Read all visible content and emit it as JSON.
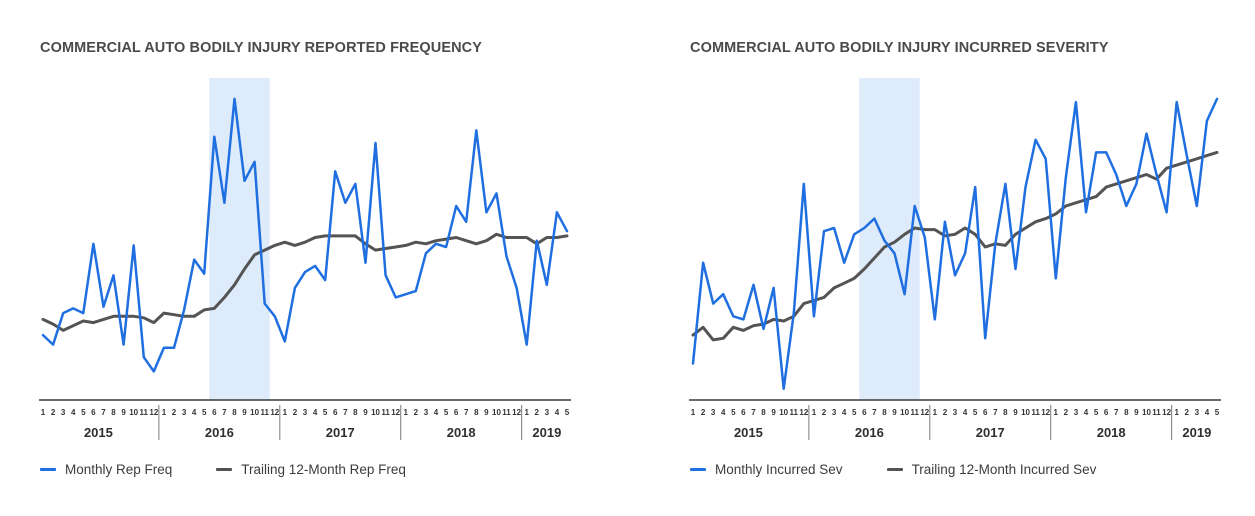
{
  "colors": {
    "monthly": "#1f6fe0",
    "trailing": "#545454",
    "highlight": "#deebfb",
    "axis": "#3a3a3a"
  },
  "chart_data": [
    {
      "type": "line",
      "title": "COMMERCIAL AUTO BODILY INJURY REPORTED FREQUENCY",
      "x_month_labels": [
        "1",
        "2",
        "3",
        "4",
        "5",
        "6",
        "7",
        "8",
        "9",
        "10",
        "11",
        "12",
        "1",
        "2",
        "3",
        "4",
        "5",
        "6",
        "7",
        "8",
        "9",
        "10",
        "11",
        "12",
        "1",
        "2",
        "3",
        "4",
        "5",
        "6",
        "7",
        "8",
        "9",
        "10",
        "11",
        "12",
        "1",
        "2",
        "3",
        "4",
        "5",
        "6",
        "7",
        "8",
        "9",
        "10",
        "11",
        "12",
        "1",
        "2",
        "3",
        "4",
        "5"
      ],
      "year_labels": [
        "2015",
        "2016",
        "2017",
        "2018",
        "2019"
      ],
      "highlight_months": [
        17,
        22
      ],
      "ylim": [
        0,
        100
      ],
      "grid": false,
      "legend_position": "bottom-left",
      "series": [
        {
          "name": "Monthly Rep Freq",
          "color_key": "monthly",
          "values": [
            19,
            16,
            26,
            27.5,
            26,
            48,
            28,
            38,
            16,
            47.5,
            12,
            7.5,
            15,
            15,
            27,
            43,
            38.5,
            82,
            61,
            94,
            68,
            74,
            29,
            25,
            17,
            34,
            39,
            41,
            36.5,
            71,
            61,
            67,
            42,
            80,
            38,
            31,
            32,
            33,
            45,
            48,
            47,
            60,
            55,
            84,
            58,
            64,
            44,
            34,
            16,
            49,
            35,
            58,
            52
          ]
        },
        {
          "name": "Trailing 12-Month Rep Freq",
          "color_key": "trailing",
          "values": [
            24,
            22.5,
            20.5,
            22,
            23.5,
            23,
            24,
            25,
            25,
            25,
            24.5,
            23,
            26,
            25.5,
            25,
            25,
            27,
            27.5,
            31,
            35,
            40,
            44.5,
            46,
            47.5,
            48.5,
            47.5,
            48.5,
            50,
            50.5,
            50.5,
            50.5,
            50.5,
            48,
            46,
            46.5,
            47,
            47.5,
            48.5,
            48,
            49,
            49.5,
            50,
            49,
            48,
            49,
            51,
            50,
            50,
            50,
            48,
            50,
            50,
            50.5
          ]
        }
      ]
    },
    {
      "type": "line",
      "title": "COMMERCIAL AUTO BODILY INJURY INCURRED SEVERITY",
      "x_month_labels": [
        "1",
        "2",
        "3",
        "4",
        "5",
        "6",
        "7",
        "8",
        "9",
        "10",
        "11",
        "12",
        "1",
        "2",
        "3",
        "4",
        "5",
        "6",
        "7",
        "8",
        "9",
        "10",
        "11",
        "12",
        "1",
        "2",
        "3",
        "4",
        "5",
        "6",
        "7",
        "8",
        "9",
        "10",
        "11",
        "12",
        "1",
        "2",
        "3",
        "4",
        "5",
        "6",
        "7",
        "8",
        "9",
        "10",
        "11",
        "12",
        "1",
        "2",
        "3",
        "4",
        "5"
      ],
      "year_labels": [
        "2015",
        "2016",
        "2017",
        "2018",
        "2019"
      ],
      "highlight_months": [
        17,
        22
      ],
      "ylim": [
        0,
        100
      ],
      "grid": false,
      "legend_position": "bottom-left",
      "series": [
        {
          "name": "Monthly Incurred Sev",
          "color_key": "monthly",
          "values": [
            10,
            42,
            29,
            32,
            25,
            24,
            35,
            21,
            34,
            2,
            26,
            67,
            25,
            52,
            53,
            42,
            51,
            53,
            56,
            49,
            45,
            32,
            60,
            50,
            24,
            55,
            38,
            45,
            66,
            18,
            48,
            67,
            40,
            66,
            81,
            75,
            37,
            69,
            93,
            58,
            77,
            77,
            70,
            60,
            67,
            83,
            70,
            58,
            93,
            76,
            60,
            87,
            94
          ]
        },
        {
          "name": "Trailing 12-Month Incurred Sev",
          "color_key": "trailing",
          "values": [
            19,
            21.5,
            17.5,
            18,
            21.5,
            20.5,
            22,
            22.5,
            24,
            23.5,
            25,
            29,
            30,
            31,
            34,
            35.5,
            37,
            40,
            43.5,
            47,
            48.5,
            51,
            53,
            52.5,
            52.5,
            50.5,
            51,
            53,
            51,
            47,
            48,
            47.5,
            51,
            53,
            55,
            56,
            57.5,
            60,
            61,
            62,
            63,
            66,
            67,
            68,
            69,
            70,
            68.5,
            72,
            73,
            74,
            75,
            76,
            77
          ]
        }
      ]
    }
  ]
}
